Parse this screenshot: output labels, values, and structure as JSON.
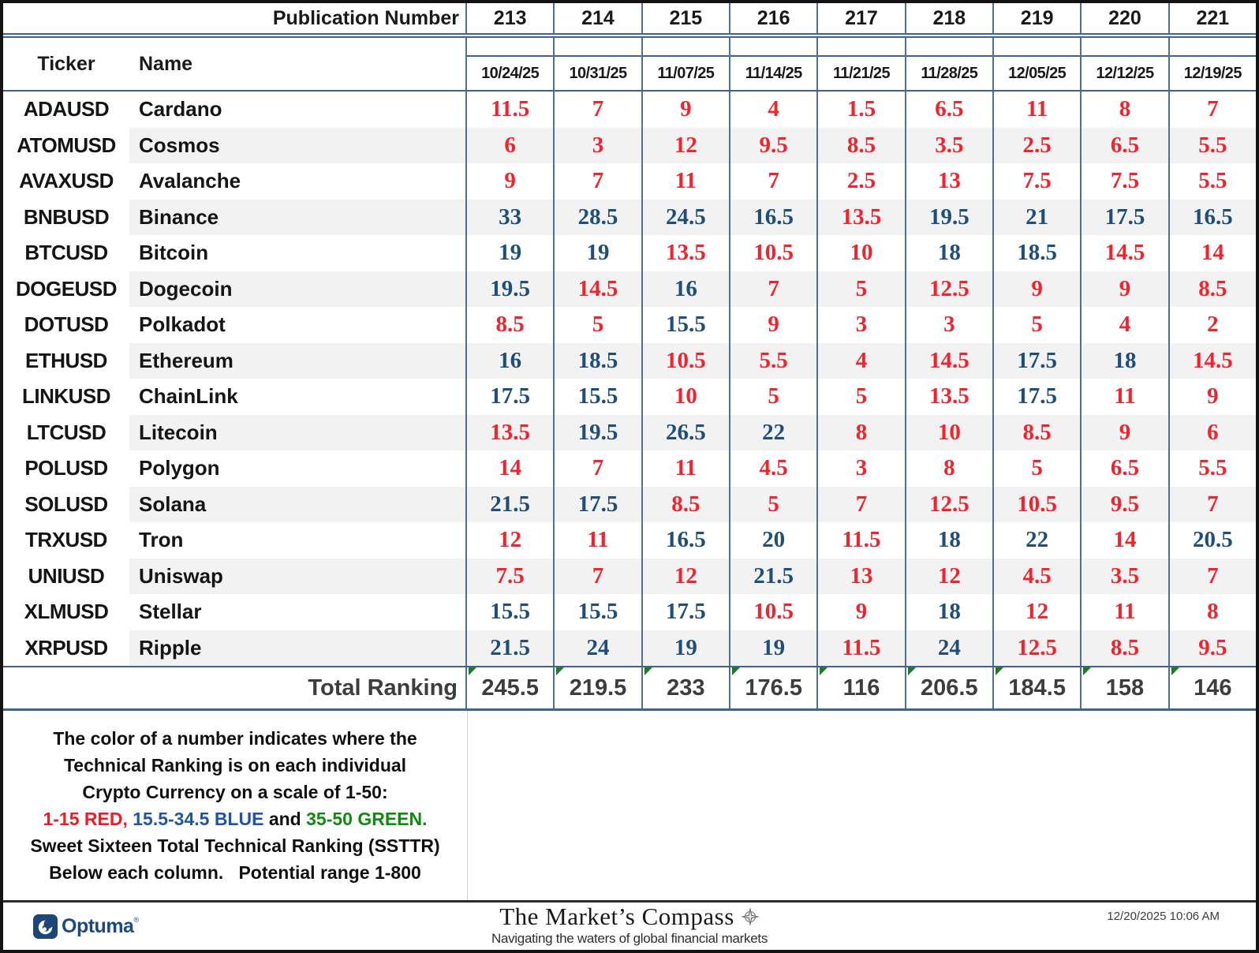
{
  "colors": {
    "red": "#f1242e",
    "blue": "#1f4e79",
    "green": "#168a16",
    "triangle_green": "#1b7c22",
    "grid_blue": "#4c7098",
    "navy": "#1b4675"
  },
  "table": {
    "publication_label": "Publication Number",
    "ticker_label": "Ticker",
    "name_label": "Name",
    "publication_numbers": [
      "213",
      "214",
      "215",
      "216",
      "217",
      "218",
      "219",
      "220",
      "221"
    ],
    "dates": [
      "10/24/25",
      "10/31/25",
      "11/07/25",
      "11/14/25",
      "11/21/25",
      "11/28/25",
      "12/05/25",
      "12/12/25",
      "12/19/25"
    ],
    "rows": [
      {
        "ticker": "ADAUSD",
        "name": "Cardano",
        "values": [
          11.5,
          7,
          9,
          4,
          1.5,
          6.5,
          11,
          8,
          7
        ]
      },
      {
        "ticker": "ATOMUSD",
        "name": "Cosmos",
        "values": [
          6,
          3,
          12,
          9.5,
          8.5,
          3.5,
          2.5,
          6.5,
          5.5
        ]
      },
      {
        "ticker": "AVAXUSD",
        "name": "Avalanche",
        "values": [
          9,
          7,
          11,
          7,
          2.5,
          13,
          7.5,
          7.5,
          5.5
        ]
      },
      {
        "ticker": "BNBUSD",
        "name": "Binance",
        "values": [
          33,
          28.5,
          24.5,
          16.5,
          13.5,
          19.5,
          21,
          17.5,
          16.5
        ]
      },
      {
        "ticker": "BTCUSD",
        "name": "Bitcoin",
        "values": [
          19,
          19,
          13.5,
          10.5,
          10,
          18,
          18.5,
          14.5,
          14
        ]
      },
      {
        "ticker": "DOGEUSD",
        "name": "Dogecoin",
        "values": [
          19.5,
          14.5,
          16,
          7,
          5,
          12.5,
          9,
          9,
          8.5
        ]
      },
      {
        "ticker": "DOTUSD",
        "name": "Polkadot",
        "values": [
          8.5,
          5,
          15.5,
          9,
          3,
          3,
          5,
          4,
          2
        ]
      },
      {
        "ticker": "ETHUSD",
        "name": "Ethereum",
        "values": [
          16,
          18.5,
          10.5,
          5.5,
          4,
          14.5,
          17.5,
          18,
          14.5
        ]
      },
      {
        "ticker": "LINKUSD",
        "name": "ChainLink",
        "values": [
          17.5,
          15.5,
          10,
          5,
          5,
          13.5,
          17.5,
          11,
          9
        ]
      },
      {
        "ticker": "LTCUSD",
        "name": "Litecoin",
        "values": [
          13.5,
          19.5,
          26.5,
          22,
          8,
          10,
          8.5,
          9,
          6
        ]
      },
      {
        "ticker": "POLUSD",
        "name": "Polygon",
        "values": [
          14,
          7,
          11,
          4.5,
          3,
          8,
          5,
          6.5,
          5.5
        ]
      },
      {
        "ticker": "SOLUSD",
        "name": "Solana",
        "values": [
          21.5,
          17.5,
          8.5,
          5,
          7,
          12.5,
          10.5,
          9.5,
          7
        ]
      },
      {
        "ticker": "TRXUSD",
        "name": "Tron",
        "values": [
          12,
          11,
          16.5,
          20,
          11.5,
          18,
          22,
          14,
          20.5
        ]
      },
      {
        "ticker": "UNIUSD",
        "name": "Uniswap",
        "values": [
          7.5,
          7,
          12,
          21.5,
          13,
          12,
          4.5,
          3.5,
          7
        ]
      },
      {
        "ticker": "XLMUSD",
        "name": "Stellar",
        "values": [
          15.5,
          15.5,
          17.5,
          10.5,
          9,
          18,
          12,
          11,
          8
        ]
      },
      {
        "ticker": "XRPUSD",
        "name": "Ripple",
        "values": [
          21.5,
          24,
          19,
          19,
          11.5,
          24,
          12.5,
          8.5,
          9.5
        ]
      }
    ],
    "total_label": "Total Ranking",
    "totals": [
      245.5,
      219.5,
      233,
      176.5,
      116,
      206.5,
      184.5,
      158,
      146
    ],
    "color_rule": {
      "red_max": 15,
      "blue_max": 34.5,
      "green_max": 50
    }
  },
  "legend": {
    "lines": [
      "The color of a number indicates where the",
      "Technical Ranking is on each individual",
      "Crypto Currency on a scale of 1-50:"
    ],
    "scale_segments": [
      {
        "text": "1-15 RED, ",
        "hex": "#ee1c25"
      },
      {
        "text": "15.5-34.5 BLUE",
        "hex": "#2155a4"
      },
      {
        "text": " and ",
        "hex": "#101010"
      },
      {
        "text": "35-50 GREEN.",
        "hex": "#118a11"
      }
    ],
    "lines_after": [
      "Sweet Sixteen Total Technical Ranking (SSTTR)",
      "Below each column.   Potential range 1-800"
    ]
  },
  "footer": {
    "optuma_label": "Optuma",
    "registered_mark": "®",
    "brand_title": "The Market’s Compass",
    "brand_subtitle": "Navigating the waters of global financial markets",
    "timestamp": "12/20/2025 10:06 AM"
  }
}
